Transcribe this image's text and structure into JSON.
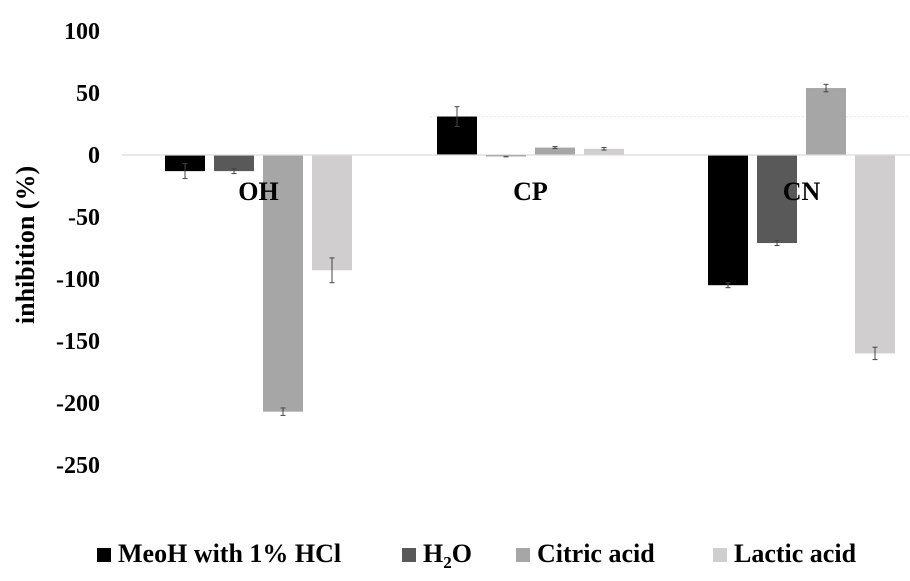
{
  "chart_data": {
    "type": "bar",
    "title": "",
    "ylabel": "inhibition (%)",
    "xlabel": "",
    "categories": [
      "OH",
      "CP",
      "CN"
    ],
    "ylim": [
      -250,
      100
    ],
    "yticks": [
      100,
      50,
      0,
      -50,
      -100,
      -150,
      -200,
      -250
    ],
    "ytick_labels": [
      "100",
      "50",
      "0",
      "-50",
      "-100",
      "-150",
      "-200",
      "-250"
    ],
    "series": [
      {
        "name": "MeoH with 1% HCl",
        "values": [
          -13,
          31,
          -105
        ],
        "errors": [
          6,
          8,
          2
        ],
        "color": "#000000"
      },
      {
        "name": "H2O",
        "name_base": "H",
        "name_sub": "2",
        "name_tail": "O",
        "values": [
          -13,
          -1,
          -71
        ],
        "errors": [
          2,
          0.5,
          2
        ],
        "color": "#595959"
      },
      {
        "name": "Citric acid",
        "values": [
          -207,
          6,
          54
        ],
        "errors": [
          3,
          0.8,
          3
        ],
        "color": "#a6a6a6"
      },
      {
        "name": "Lactic acid",
        "values": [
          -93,
          5,
          -160
        ],
        "errors": [
          10,
          1,
          5
        ],
        "color": "#d0cece"
      }
    ],
    "legend_position": "bottom",
    "grid": true
  }
}
